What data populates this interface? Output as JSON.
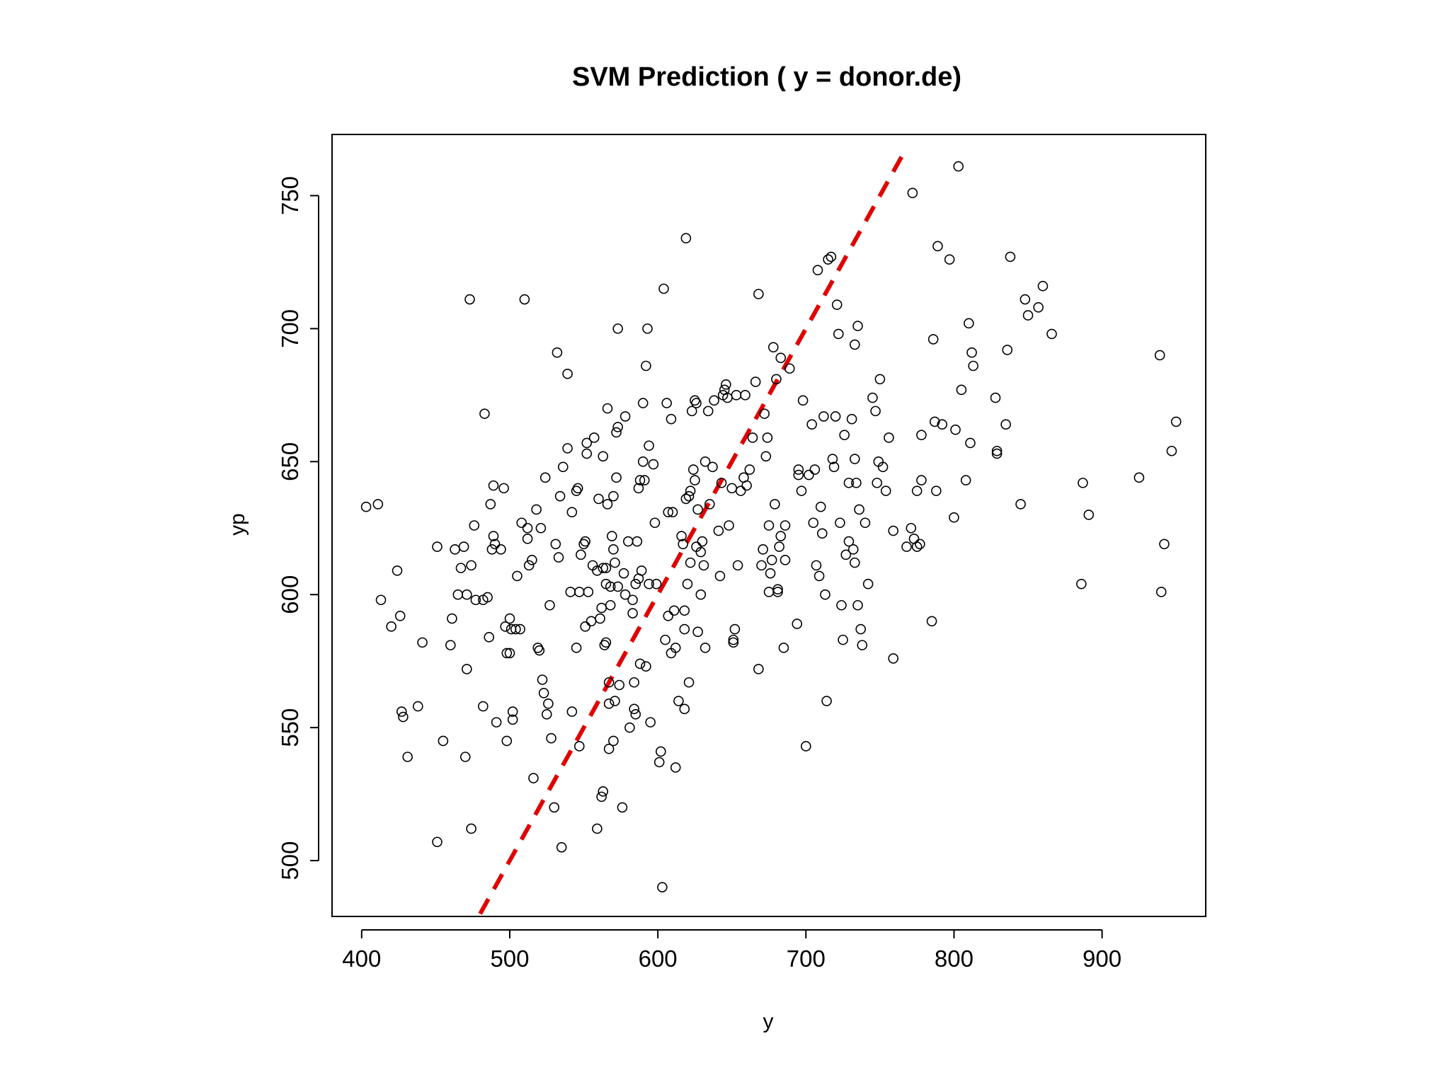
{
  "chart_data": {
    "type": "scatter",
    "title": "SVM Prediction ( y = donor.de)",
    "xlabel": "y",
    "ylabel": "yp",
    "xlim": [
      380,
      970
    ],
    "ylim": [
      479,
      773
    ],
    "xticks": [
      400,
      500,
      600,
      700,
      800,
      900
    ],
    "yticks": [
      500,
      550,
      600,
      650,
      700,
      750
    ],
    "grid": false,
    "legend": "none",
    "point_marker": "open-circle",
    "point_color": "#000000",
    "reference_line": {
      "type": "identity",
      "slope": 1,
      "intercept": 0,
      "color": "#e00000",
      "style": "dashed",
      "x_range": [
        480,
        768
      ]
    },
    "points": [
      [
        403,
        633
      ],
      [
        411,
        634
      ],
      [
        413,
        598
      ],
      [
        420,
        588
      ],
      [
        424,
        609
      ],
      [
        426,
        592
      ],
      [
        427,
        556
      ],
      [
        428,
        554
      ],
      [
        431,
        539
      ],
      [
        438,
        558
      ],
      [
        441,
        582
      ],
      [
        451,
        507
      ],
      [
        451,
        618
      ],
      [
        455,
        545
      ],
      [
        460,
        581
      ],
      [
        461,
        591
      ],
      [
        463,
        617
      ],
      [
        465,
        600
      ],
      [
        467,
        610
      ],
      [
        469,
        618
      ],
      [
        470,
        539
      ],
      [
        471,
        600
      ],
      [
        471,
        572
      ],
      [
        473,
        711
      ],
      [
        474,
        512
      ],
      [
        474,
        611
      ],
      [
        476,
        626
      ],
      [
        477,
        598
      ],
      [
        482,
        558
      ],
      [
        482,
        598
      ],
      [
        483,
        668
      ],
      [
        485,
        599
      ],
      [
        486,
        584
      ],
      [
        487,
        634
      ],
      [
        488,
        617
      ],
      [
        489,
        622
      ],
      [
        489,
        641
      ],
      [
        490,
        619
      ],
      [
        491,
        552
      ],
      [
        494,
        617
      ],
      [
        496,
        640
      ],
      [
        497,
        588
      ],
      [
        498,
        578
      ],
      [
        498,
        545
      ],
      [
        500,
        591
      ],
      [
        500,
        578
      ],
      [
        501,
        587
      ],
      [
        502,
        556
      ],
      [
        502,
        553
      ],
      [
        504,
        587
      ],
      [
        505,
        607
      ],
      [
        507,
        587
      ],
      [
        508,
        627
      ],
      [
        510,
        711
      ],
      [
        512,
        625
      ],
      [
        512,
        621
      ],
      [
        513,
        611
      ],
      [
        515,
        613
      ],
      [
        516,
        531
      ],
      [
        518,
        632
      ],
      [
        519,
        580
      ],
      [
        520,
        579
      ],
      [
        521,
        625
      ],
      [
        522,
        568
      ],
      [
        523,
        563
      ],
      [
        524,
        644
      ],
      [
        525,
        555
      ],
      [
        526,
        559
      ],
      [
        527,
        596
      ],
      [
        528,
        546
      ],
      [
        530,
        520
      ],
      [
        531,
        619
      ],
      [
        532,
        691
      ],
      [
        533,
        614
      ],
      [
        534,
        637
      ],
      [
        535,
        505
      ],
      [
        536,
        648
      ],
      [
        539,
        683
      ],
      [
        539,
        655
      ],
      [
        541,
        601
      ],
      [
        542,
        556
      ],
      [
        542,
        631
      ],
      [
        545,
        580
      ],
      [
        545,
        639
      ],
      [
        546,
        640
      ],
      [
        547,
        601
      ],
      [
        547,
        543
      ],
      [
        548,
        615
      ],
      [
        550,
        619
      ],
      [
        551,
        588
      ],
      [
        551,
        620
      ],
      [
        552,
        657
      ],
      [
        552,
        653
      ],
      [
        553,
        601
      ],
      [
        555,
        590
      ],
      [
        556,
        611
      ],
      [
        557,
        659
      ],
      [
        559,
        512
      ],
      [
        559,
        609
      ],
      [
        560,
        636
      ],
      [
        561,
        591
      ],
      [
        562,
        524
      ],
      [
        562,
        595
      ],
      [
        563,
        610
      ],
      [
        563,
        652
      ],
      [
        563,
        526
      ],
      [
        564,
        581
      ],
      [
        565,
        582
      ],
      [
        566,
        670
      ],
      [
        565,
        604
      ],
      [
        565,
        610
      ],
      [
        566,
        634
      ],
      [
        567,
        567
      ],
      [
        567,
        542
      ],
      [
        567,
        559
      ],
      [
        568,
        596
      ],
      [
        568,
        603
      ],
      [
        569,
        622
      ],
      [
        570,
        545
      ],
      [
        570,
        617
      ],
      [
        570,
        637
      ],
      [
        571,
        560
      ],
      [
        571,
        612
      ],
      [
        572,
        661
      ],
      [
        572,
        644
      ],
      [
        573,
        663
      ],
      [
        573,
        603
      ],
      [
        573,
        700
      ],
      [
        574,
        566
      ],
      [
        576,
        520
      ],
      [
        577,
        608
      ],
      [
        578,
        600
      ],
      [
        578,
        667
      ],
      [
        580,
        620
      ],
      [
        581,
        550
      ],
      [
        583,
        593
      ],
      [
        583,
        598
      ],
      [
        584,
        557
      ],
      [
        584,
        567
      ],
      [
        585,
        555
      ],
      [
        585,
        604
      ],
      [
        586,
        620
      ],
      [
        587,
        640
      ],
      [
        587,
        606
      ],
      [
        588,
        574
      ],
      [
        588,
        643
      ],
      [
        589,
        609
      ],
      [
        590,
        650
      ],
      [
        590,
        672
      ],
      [
        591,
        643
      ],
      [
        592,
        573
      ],
      [
        592,
        686
      ],
      [
        593,
        700
      ],
      [
        594,
        656
      ],
      [
        594,
        604
      ],
      [
        595,
        552
      ],
      [
        597,
        649
      ],
      [
        598,
        627
      ],
      [
        599,
        604
      ],
      [
        601,
        537
      ],
      [
        602,
        541
      ],
      [
        603,
        490
      ],
      [
        604,
        715
      ],
      [
        605,
        583
      ],
      [
        606,
        672
      ],
      [
        607,
        631
      ],
      [
        607,
        592
      ],
      [
        609,
        578
      ],
      [
        609,
        666
      ],
      [
        610,
        631
      ],
      [
        611,
        594
      ],
      [
        612,
        535
      ],
      [
        612,
        580
      ],
      [
        614,
        560
      ],
      [
        616,
        622
      ],
      [
        617,
        619
      ],
      [
        618,
        587
      ],
      [
        618,
        594
      ],
      [
        618,
        557
      ],
      [
        619,
        734
      ],
      [
        619,
        636
      ],
      [
        620,
        604
      ],
      [
        621,
        637
      ],
      [
        621,
        567
      ],
      [
        622,
        639
      ],
      [
        622,
        612
      ],
      [
        623,
        669
      ],
      [
        624,
        647
      ],
      [
        625,
        643
      ],
      [
        625,
        673
      ],
      [
        626,
        672
      ],
      [
        626,
        618
      ],
      [
        627,
        632
      ],
      [
        627,
        586
      ],
      [
        629,
        600
      ],
      [
        629,
        616
      ],
      [
        630,
        620
      ],
      [
        631,
        611
      ],
      [
        632,
        650
      ],
      [
        632,
        580
      ],
      [
        634,
        669
      ],
      [
        635,
        634
      ],
      [
        637,
        648
      ],
      [
        638,
        673
      ],
      [
        641,
        624
      ],
      [
        642,
        607
      ],
      [
        643,
        642
      ],
      [
        644,
        675
      ],
      [
        645,
        677
      ],
      [
        646,
        679
      ],
      [
        647,
        674
      ],
      [
        648,
        626
      ],
      [
        650,
        640
      ],
      [
        651,
        582
      ],
      [
        651,
        583
      ],
      [
        652,
        587
      ],
      [
        653,
        675
      ],
      [
        654,
        611
      ],
      [
        656,
        639
      ],
      [
        658,
        644
      ],
      [
        659,
        675
      ],
      [
        660,
        641
      ],
      [
        662,
        647
      ],
      [
        664,
        659
      ],
      [
        666,
        680
      ],
      [
        668,
        572
      ],
      [
        668,
        713
      ],
      [
        670,
        611
      ],
      [
        671,
        617
      ],
      [
        672,
        668
      ],
      [
        673,
        652
      ],
      [
        674,
        659
      ],
      [
        675,
        601
      ],
      [
        675,
        626
      ],
      [
        676,
        608
      ],
      [
        677,
        613
      ],
      [
        678,
        693
      ],
      [
        679,
        634
      ],
      [
        680,
        681
      ],
      [
        681,
        601
      ],
      [
        681,
        602
      ],
      [
        682,
        618
      ],
      [
        683,
        622
      ],
      [
        683,
        689
      ],
      [
        685,
        580
      ],
      [
        686,
        613
      ],
      [
        686,
        626
      ],
      [
        689,
        685
      ],
      [
        694,
        589
      ],
      [
        695,
        647
      ],
      [
        695,
        645
      ],
      [
        697,
        639
      ],
      [
        698,
        673
      ],
      [
        700,
        543
      ],
      [
        702,
        645
      ],
      [
        704,
        664
      ],
      [
        705,
        627
      ],
      [
        706,
        647
      ],
      [
        707,
        611
      ],
      [
        708,
        722
      ],
      [
        709,
        607
      ],
      [
        710,
        633
      ],
      [
        711,
        623
      ],
      [
        712,
        667
      ],
      [
        713,
        600
      ],
      [
        714,
        560
      ],
      [
        715,
        726
      ],
      [
        717,
        727
      ],
      [
        718,
        651
      ],
      [
        719,
        648
      ],
      [
        720,
        667
      ],
      [
        721,
        709
      ],
      [
        722,
        698
      ],
      [
        723,
        627
      ],
      [
        724,
        596
      ],
      [
        725,
        583
      ],
      [
        726,
        660
      ],
      [
        727,
        615
      ],
      [
        729,
        642
      ],
      [
        729,
        620
      ],
      [
        731,
        666
      ],
      [
        732,
        617
      ],
      [
        733,
        651
      ],
      [
        733,
        694
      ],
      [
        733,
        612
      ],
      [
        734,
        642
      ],
      [
        735,
        701
      ],
      [
        735,
        596
      ],
      [
        736,
        632
      ],
      [
        737,
        587
      ],
      [
        738,
        581
      ],
      [
        740,
        627
      ],
      [
        742,
        604
      ],
      [
        745,
        674
      ],
      [
        747,
        669
      ],
      [
        748,
        642
      ],
      [
        749,
        650
      ],
      [
        750,
        681
      ],
      [
        752,
        648
      ],
      [
        754,
        639
      ],
      [
        756,
        659
      ],
      [
        759,
        576
      ],
      [
        759,
        624
      ],
      [
        768,
        618
      ],
      [
        771,
        625
      ],
      [
        772,
        751
      ],
      [
        773,
        621
      ],
      [
        775,
        639
      ],
      [
        775,
        618
      ],
      [
        777,
        619
      ],
      [
        778,
        660
      ],
      [
        778,
        643
      ],
      [
        785,
        590
      ],
      [
        786,
        696
      ],
      [
        787,
        665
      ],
      [
        788,
        639
      ],
      [
        789,
        731
      ],
      [
        792,
        664
      ],
      [
        797,
        726
      ],
      [
        800,
        629
      ],
      [
        801,
        662
      ],
      [
        803,
        761
      ],
      [
        805,
        677
      ],
      [
        808,
        643
      ],
      [
        810,
        702
      ],
      [
        811,
        657
      ],
      [
        812,
        691
      ],
      [
        813,
        686
      ],
      [
        828,
        674
      ],
      [
        829,
        654
      ],
      [
        829,
        653
      ],
      [
        835,
        664
      ],
      [
        836,
        692
      ],
      [
        838,
        727
      ],
      [
        845,
        634
      ],
      [
        848,
        711
      ],
      [
        850,
        705
      ],
      [
        857,
        708
      ],
      [
        860,
        716
      ],
      [
        866,
        698
      ],
      [
        886,
        604
      ],
      [
        887,
        642
      ],
      [
        891,
        630
      ],
      [
        925,
        644
      ],
      [
        939,
        690
      ],
      [
        940,
        601
      ],
      [
        942,
        619
      ],
      [
        947,
        654
      ],
      [
        950,
        665
      ]
    ]
  }
}
